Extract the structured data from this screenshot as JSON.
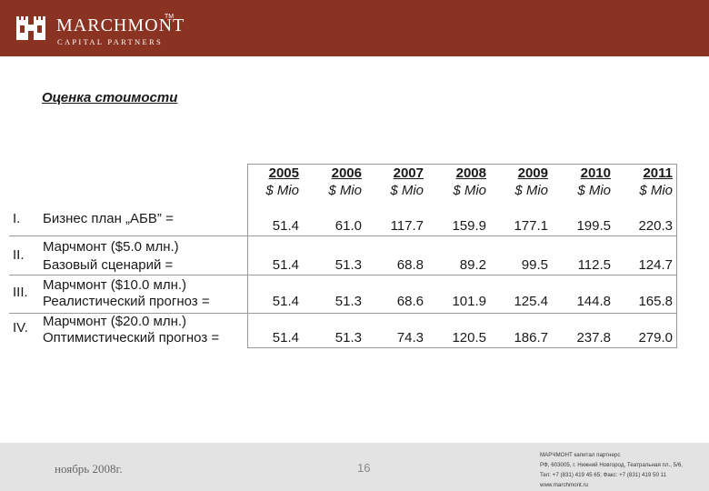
{
  "header": {
    "brand_name": "MARCHMONT",
    "trademark": "TM",
    "brand_sub": "CAPITAL PARTNERS",
    "color": "#8b3322",
    "icon": "castle-logo-icon"
  },
  "slide": {
    "title": " Оценка стоимости"
  },
  "table": {
    "years": [
      "2005",
      "2006",
      "2007",
      "2008",
      "2009",
      "2010",
      "2011"
    ],
    "unit": "$ Mio",
    "rows": [
      {
        "num": "I.",
        "label_1": "Бизнес план „АБВ” =",
        "label_2": "",
        "values": [
          "51.4",
          "61.0",
          "117.7",
          "159.9",
          "177.1",
          "199.5",
          "220.3"
        ]
      },
      {
        "num": "II.",
        "label_1": "Марчмонт  ($5.0 млн.)",
        "label_2": "Базовый сценарий =",
        "values": [
          "51.4",
          "51.3",
          "68.8",
          "89.2",
          "99.5",
          "112.5",
          "124.7"
        ]
      },
      {
        "num": "III.",
        "label_1": "Марчмонт ($10.0 млн.)",
        "label_2": "Реалистический прогноз =",
        "values": [
          "51.4",
          "51.3",
          "68.6",
          "101.9",
          "125.4",
          "144.8",
          "165.8"
        ]
      },
      {
        "num": "IV.",
        "label_1": "Марчмонт ($20.0 млн.)",
        "label_2": "Оптимистический прогноз =",
        "values": [
          "51.4",
          "51.3",
          "74.3",
          "120.5",
          "186.7",
          "237.8",
          "279.0"
        ]
      }
    ]
  },
  "footer": {
    "date": "ноябрь 2008г.",
    "page": "16",
    "contact_1": "МАРЧМОНТ капитал партнерс",
    "contact_2": "РФ, 603005, г. Нижний Новгород, Театральная пл., 5/6,",
    "contact_3": "Тел: +7 (831) 419 45 65; Факс: +7 (831) 419 50 11",
    "contact_4": "www.marchmont.ru"
  }
}
